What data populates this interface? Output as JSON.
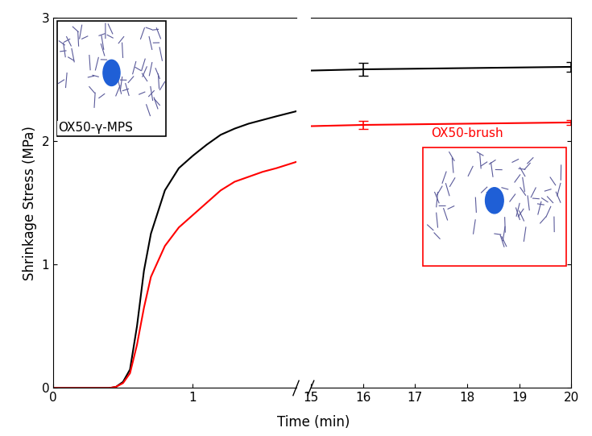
{
  "chart_data": [
    {
      "type": "line",
      "y_label": "Shrinkage Stress (MPa)",
      "x_label": "Time (min)",
      "xlim": [
        0,
        1.74
      ],
      "xticks": [
        0,
        1
      ],
      "ylim": [
        0,
        3
      ],
      "yticks": [
        0,
        1,
        2,
        3
      ],
      "series": [
        {
          "name": "OX50-γ-MPS",
          "color": "#000000",
          "x": [
            0,
            0.4,
            0.45,
            0.5,
            0.55,
            0.6,
            0.65,
            0.7,
            0.8,
            0.9,
            1.0,
            1.1,
            1.2,
            1.3,
            1.4,
            1.5,
            1.6,
            1.74
          ],
          "values": [
            0,
            0,
            0.01,
            0.05,
            0.15,
            0.5,
            0.95,
            1.25,
            1.6,
            1.78,
            1.88,
            1.97,
            2.05,
            2.1,
            2.14,
            2.17,
            2.2,
            2.24
          ]
        },
        {
          "name": "OX50-brush",
          "color": "#ff0000",
          "x": [
            0,
            0.4,
            0.45,
            0.5,
            0.55,
            0.6,
            0.65,
            0.7,
            0.8,
            0.9,
            1.0,
            1.1,
            1.2,
            1.3,
            1.4,
            1.5,
            1.6,
            1.74
          ],
          "values": [
            0,
            0,
            0.01,
            0.04,
            0.12,
            0.35,
            0.65,
            0.9,
            1.15,
            1.3,
            1.4,
            1.5,
            1.6,
            1.67,
            1.71,
            1.75,
            1.78,
            1.83
          ]
        }
      ]
    },
    {
      "type": "line",
      "tick_labels": "x",
      "xlim": [
        15,
        20
      ],
      "xticks": [
        15,
        16,
        17,
        18,
        19,
        20
      ],
      "ylim": [
        0,
        3
      ],
      "yticks": [
        0,
        1,
        2,
        3
      ],
      "series": [
        {
          "color": "#000000",
          "x": [
            15,
            16,
            20
          ],
          "values": [
            2.57,
            2.58,
            2.6
          ],
          "errors": [
            null,
            0.05,
            0.04
          ]
        },
        {
          "color": "#ff0000",
          "x": [
            15,
            16,
            20
          ],
          "values": [
            2.12,
            2.13,
            2.15
          ],
          "errors": [
            null,
            0.03,
            0.02
          ]
        }
      ]
    }
  ]
}
